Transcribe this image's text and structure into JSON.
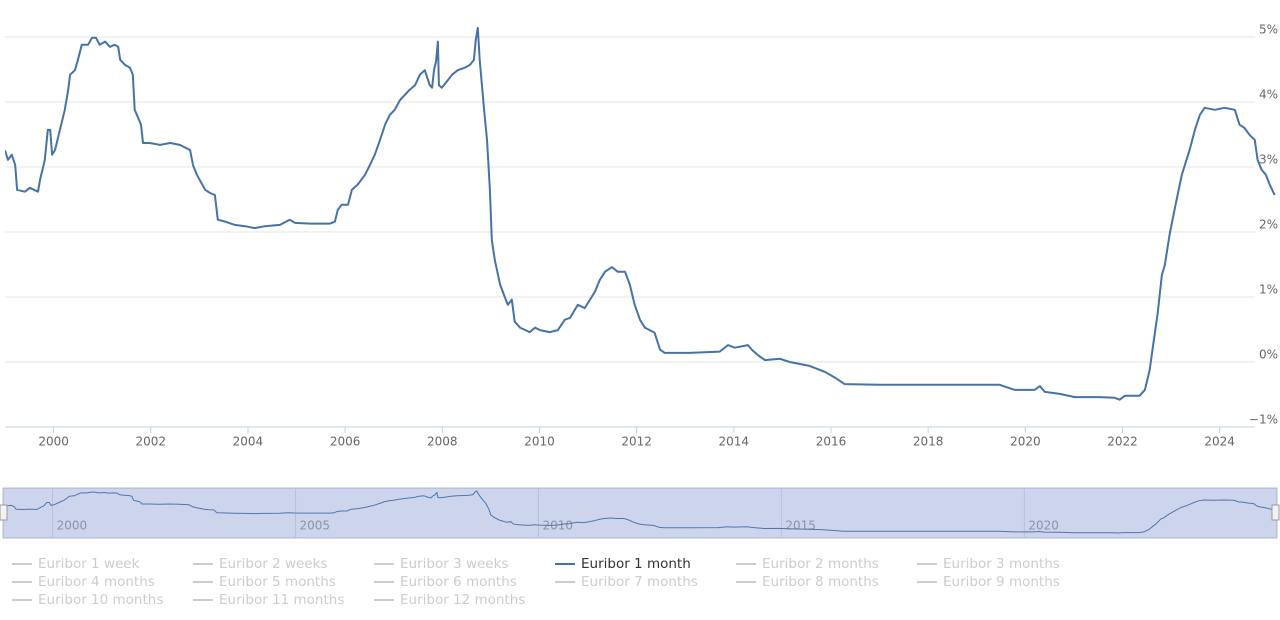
{
  "chart_data": {
    "type": "line",
    "x": [
      1999.0,
      1999.06,
      1999.14,
      1999.21,
      1999.25,
      1999.41,
      1999.51,
      1999.68,
      1999.72,
      1999.82,
      1999.88,
      1999.93,
      1999.97,
      2000.03,
      2000.13,
      2000.23,
      2000.3,
      2000.34,
      2000.44,
      2000.5,
      2000.58,
      2000.71,
      2000.79,
      2000.87,
      2000.95,
      2001.06,
      2001.16,
      2001.26,
      2001.33,
      2001.37,
      2001.47,
      2001.57,
      2001.63,
      2001.67,
      2001.74,
      2001.8,
      2001.84,
      2001.98,
      2002.19,
      2002.4,
      2002.6,
      2002.81,
      2002.87,
      2002.95,
      2003.12,
      2003.22,
      2003.32,
      2003.38,
      2003.53,
      2003.73,
      2003.94,
      2004.14,
      2004.35,
      2004.66,
      2004.86,
      2004.97,
      2005.28,
      2005.69,
      2005.79,
      2005.85,
      2005.93,
      2006.06,
      2006.14,
      2006.26,
      2006.41,
      2006.51,
      2006.61,
      2006.72,
      2006.82,
      2006.92,
      2007.02,
      2007.13,
      2007.23,
      2007.33,
      2007.44,
      2007.54,
      2007.64,
      2007.74,
      2007.79,
      2007.83,
      2007.87,
      2007.91,
      2007.93,
      2007.99,
      2008.12,
      2008.2,
      2008.32,
      2008.47,
      2008.57,
      2008.65,
      2008.69,
      2008.73,
      2008.77,
      2008.86,
      2008.92,
      2008.98,
      2009.02,
      2009.08,
      2009.19,
      2009.29,
      2009.35,
      2009.43,
      2009.49,
      2009.6,
      2009.8,
      2009.91,
      2010.01,
      2010.21,
      2010.38,
      2010.52,
      2010.63,
      2010.79,
      2010.93,
      2011.04,
      2011.14,
      2011.24,
      2011.35,
      2011.49,
      2011.61,
      2011.76,
      2011.86,
      2011.96,
      2012.07,
      2012.17,
      2012.37,
      2012.48,
      2012.58,
      2013.09,
      2013.71,
      2013.88,
      2014.02,
      2014.29,
      2014.37,
      2014.49,
      2014.64,
      2014.95,
      2015.15,
      2015.56,
      2015.87,
      2016.08,
      2016.28,
      2017.0,
      2018.44,
      2019.47,
      2019.78,
      2020.19,
      2020.3,
      2020.4,
      2020.71,
      2021.02,
      2021.53,
      2021.84,
      2021.94,
      2022.05,
      2022.35,
      2022.46,
      2022.56,
      2022.66,
      2022.72,
      2022.81,
      2022.87,
      2022.97,
      2023.07,
      2023.22,
      2023.38,
      2023.49,
      2023.59,
      2023.69,
      2023.9,
      2024.1,
      2024.31,
      2024.41,
      2024.51,
      2024.62,
      2024.72,
      2024.78,
      2024.86,
      2024.95,
      2025.03,
      2025.13
    ],
    "series": [
      {
        "name": "Euribor 1 week",
        "visible": false
      },
      {
        "name": "Euribor 2 weeks",
        "visible": false
      },
      {
        "name": "Euribor 3 weeks",
        "visible": false
      },
      {
        "name": "Euribor 1 month",
        "visible": true,
        "color": "#4572a7",
        "values": [
          3.26,
          3.11,
          3.19,
          3.03,
          2.65,
          2.62,
          2.68,
          2.62,
          2.8,
          3.11,
          3.57,
          3.57,
          3.19,
          3.26,
          3.57,
          3.88,
          4.19,
          4.42,
          4.49,
          4.65,
          4.88,
          4.88,
          4.99,
          4.99,
          4.88,
          4.93,
          4.85,
          4.88,
          4.85,
          4.65,
          4.57,
          4.53,
          4.42,
          3.88,
          3.76,
          3.65,
          3.37,
          3.37,
          3.34,
          3.37,
          3.34,
          3.26,
          3.03,
          2.88,
          2.65,
          2.6,
          2.57,
          2.19,
          2.16,
          2.11,
          2.09,
          2.06,
          2.09,
          2.11,
          2.19,
          2.14,
          2.13,
          2.13,
          2.16,
          2.34,
          2.42,
          2.42,
          2.65,
          2.73,
          2.88,
          3.03,
          3.19,
          3.42,
          3.65,
          3.8,
          3.88,
          4.03,
          4.11,
          4.19,
          4.26,
          4.42,
          4.49,
          4.26,
          4.22,
          4.49,
          4.62,
          4.93,
          4.26,
          4.22,
          4.34,
          4.42,
          4.49,
          4.53,
          4.57,
          4.65,
          4.96,
          5.14,
          4.65,
          3.88,
          3.42,
          2.65,
          1.88,
          1.57,
          1.19,
          0.99,
          0.88,
          0.96,
          0.62,
          0.53,
          0.46,
          0.53,
          0.49,
          0.46,
          0.49,
          0.65,
          0.68,
          0.88,
          0.83,
          0.96,
          1.08,
          1.26,
          1.39,
          1.46,
          1.39,
          1.39,
          1.19,
          0.88,
          0.65,
          0.53,
          0.45,
          0.19,
          0.14,
          0.14,
          0.16,
          0.26,
          0.22,
          0.26,
          0.19,
          0.11,
          0.03,
          0.05,
          0.0,
          -0.06,
          -0.15,
          -0.24,
          -0.34,
          -0.35,
          -0.35,
          -0.35,
          -0.43,
          -0.43,
          -0.37,
          -0.46,
          -0.49,
          -0.54,
          -0.54,
          -0.55,
          -0.58,
          -0.52,
          -0.52,
          -0.43,
          -0.12,
          0.42,
          0.73,
          1.34,
          1.49,
          1.96,
          2.34,
          2.88,
          3.26,
          3.57,
          3.8,
          3.91,
          3.88,
          3.91,
          3.88,
          3.65,
          3.6,
          3.49,
          3.42,
          3.11,
          2.96,
          2.88,
          2.73,
          2.57
        ]
      },
      {
        "name": "Euribor 2 months",
        "visible": false
      },
      {
        "name": "Euribor 3 months",
        "visible": false
      },
      {
        "name": "Euribor 4 months",
        "visible": false
      },
      {
        "name": "Euribor 5 months",
        "visible": false
      },
      {
        "name": "Euribor 6 months",
        "visible": false
      },
      {
        "name": "Euribor 7 months",
        "visible": false
      },
      {
        "name": "Euribor 8 months",
        "visible": false
      },
      {
        "name": "Euribor 9 months",
        "visible": false
      },
      {
        "name": "Euribor 10 months",
        "visible": false
      },
      {
        "name": "Euribor 11 months",
        "visible": false
      },
      {
        "name": "Euribor 12 months",
        "visible": false
      }
    ],
    "xlim": [
      1999.0,
      2025.2
    ],
    "xticks": [
      2000,
      2002,
      2004,
      2006,
      2008,
      2010,
      2012,
      2014,
      2016,
      2018,
      2020,
      2022,
      2024
    ],
    "ylim": [
      -1,
      5.4
    ],
    "yticks": [
      {
        "value": -1,
        "label": "−1%"
      },
      {
        "value": 0,
        "label": "0%"
      },
      {
        "value": 1,
        "label": "1%"
      },
      {
        "value": 2,
        "label": "2%"
      },
      {
        "value": 3,
        "label": "3%"
      },
      {
        "value": 4,
        "label": "4%"
      },
      {
        "value": 5,
        "label": "5%"
      }
    ],
    "grid": true,
    "navigator": {
      "xticks": [
        2000,
        2005,
        2010,
        2015,
        2020
      ]
    }
  }
}
